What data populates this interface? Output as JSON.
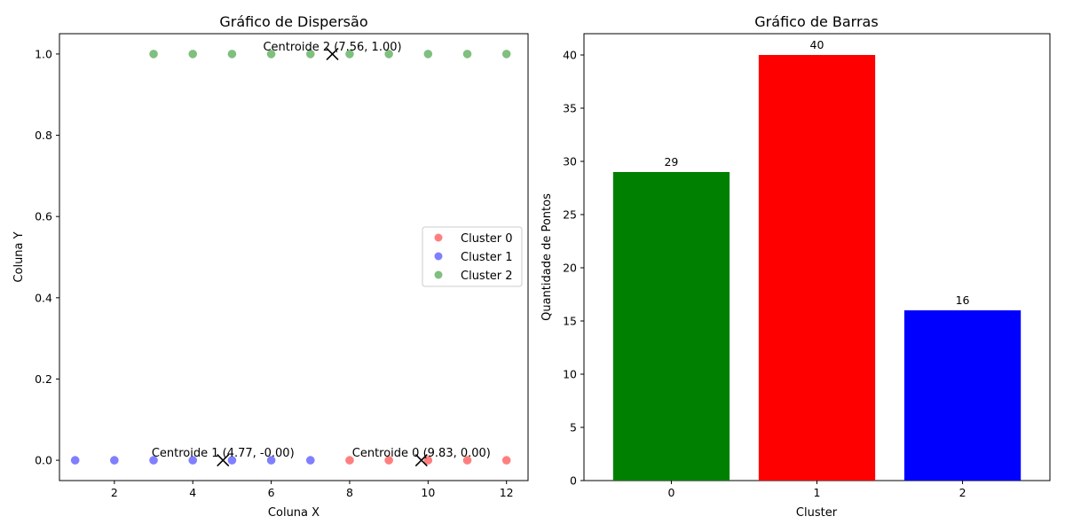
{
  "chart_data": [
    {
      "type": "scatter",
      "title": "Gráfico de Dispersão",
      "xlabel": "Coluna X",
      "ylabel": "Coluna Y",
      "xlim": [
        0.6,
        12.55
      ],
      "ylim": [
        -0.05,
        1.05
      ],
      "xticks": [
        2,
        4,
        6,
        8,
        10,
        12
      ],
      "yticks": [
        0.0,
        0.2,
        0.4,
        0.6,
        0.8,
        1.0
      ],
      "grid": false,
      "legend_position": "center-right",
      "series": [
        {
          "name": "Cluster 0",
          "color": "#ff0000",
          "x": [
            8,
            9,
            10,
            11,
            12
          ],
          "y": [
            0,
            0,
            0,
            0,
            0
          ]
        },
        {
          "name": "Cluster 1",
          "color": "#0000ff",
          "x": [
            1,
            2,
            3,
            4,
            5,
            6,
            7
          ],
          "y": [
            0,
            0,
            0,
            0,
            0,
            0,
            0
          ]
        },
        {
          "name": "Cluster 2",
          "color": "#008000",
          "x": [
            3,
            4,
            5,
            6,
            7,
            8,
            9,
            10,
            11,
            12
          ],
          "y": [
            1,
            1,
            1,
            1,
            1,
            1,
            1,
            1,
            1,
            1
          ]
        }
      ],
      "centroids": [
        {
          "label": "Centroide 0 (9.83, 0.00)",
          "x": 9.83,
          "y": 0.0
        },
        {
          "label": "Centroide 1 (4.77, -0.00)",
          "x": 4.77,
          "y": 0.0
        },
        {
          "label": "Centroide 2 (7.56, 1.00)",
          "x": 7.56,
          "y": 1.0
        }
      ]
    },
    {
      "type": "bar",
      "title": "Gráfico de Barras",
      "xlabel": "Cluster",
      "ylabel": "Quantidade de Pontos",
      "categories": [
        "0",
        "1",
        "2"
      ],
      "values": [
        29,
        40,
        16
      ],
      "colors": [
        "#008000",
        "#ff0000",
        "#0000ff"
      ],
      "ylim": [
        0,
        42
      ],
      "yticks": [
        0,
        5,
        10,
        15,
        20,
        25,
        30,
        35,
        40
      ],
      "grid": false
    }
  ]
}
